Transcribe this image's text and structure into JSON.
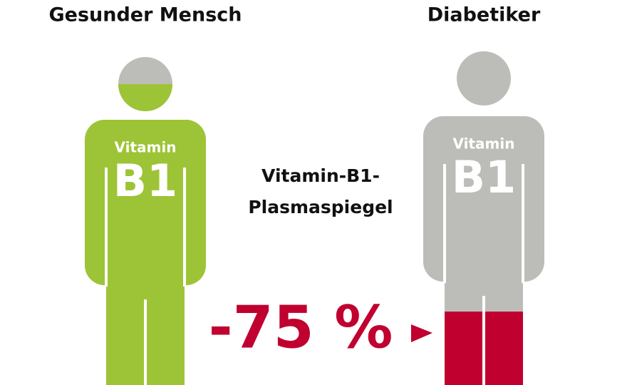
{
  "left": {
    "title": "Gesunder Mensch",
    "label_top": "Vitamin",
    "label_main": "B1"
  },
  "right": {
    "title": "Diabetiker",
    "label_top": "Vitamin",
    "label_main": "B1"
  },
  "center": {
    "lines": [
      "Vitamin-B1-",
      "Plasmaspiegel"
    ],
    "change": "-75 %"
  }
}
